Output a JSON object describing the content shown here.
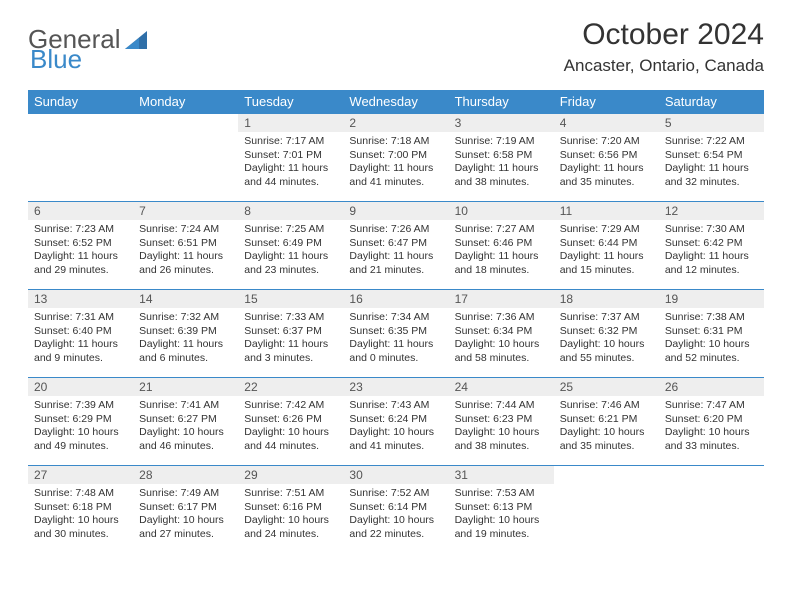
{
  "logo": {
    "text1": "General",
    "text2": "Blue"
  },
  "title": "October 2024",
  "location": "Ancaster, Ontario, Canada",
  "colors": {
    "header_bg": "#3a89c9",
    "header_text": "#ffffff",
    "daynum_bg": "#eeeeee",
    "border": "#3a89c9",
    "text": "#333333"
  },
  "weekdays": [
    "Sunday",
    "Monday",
    "Tuesday",
    "Wednesday",
    "Thursday",
    "Friday",
    "Saturday"
  ],
  "weeks": [
    [
      null,
      null,
      {
        "n": "1",
        "sr": "7:17 AM",
        "ss": "7:01 PM",
        "dl": "11 hours and 44 minutes."
      },
      {
        "n": "2",
        "sr": "7:18 AM",
        "ss": "7:00 PM",
        "dl": "11 hours and 41 minutes."
      },
      {
        "n": "3",
        "sr": "7:19 AM",
        "ss": "6:58 PM",
        "dl": "11 hours and 38 minutes."
      },
      {
        "n": "4",
        "sr": "7:20 AM",
        "ss": "6:56 PM",
        "dl": "11 hours and 35 minutes."
      },
      {
        "n": "5",
        "sr": "7:22 AM",
        "ss": "6:54 PM",
        "dl": "11 hours and 32 minutes."
      }
    ],
    [
      {
        "n": "6",
        "sr": "7:23 AM",
        "ss": "6:52 PM",
        "dl": "11 hours and 29 minutes."
      },
      {
        "n": "7",
        "sr": "7:24 AM",
        "ss": "6:51 PM",
        "dl": "11 hours and 26 minutes."
      },
      {
        "n": "8",
        "sr": "7:25 AM",
        "ss": "6:49 PM",
        "dl": "11 hours and 23 minutes."
      },
      {
        "n": "9",
        "sr": "7:26 AM",
        "ss": "6:47 PM",
        "dl": "11 hours and 21 minutes."
      },
      {
        "n": "10",
        "sr": "7:27 AM",
        "ss": "6:46 PM",
        "dl": "11 hours and 18 minutes."
      },
      {
        "n": "11",
        "sr": "7:29 AM",
        "ss": "6:44 PM",
        "dl": "11 hours and 15 minutes."
      },
      {
        "n": "12",
        "sr": "7:30 AM",
        "ss": "6:42 PM",
        "dl": "11 hours and 12 minutes."
      }
    ],
    [
      {
        "n": "13",
        "sr": "7:31 AM",
        "ss": "6:40 PM",
        "dl": "11 hours and 9 minutes."
      },
      {
        "n": "14",
        "sr": "7:32 AM",
        "ss": "6:39 PM",
        "dl": "11 hours and 6 minutes."
      },
      {
        "n": "15",
        "sr": "7:33 AM",
        "ss": "6:37 PM",
        "dl": "11 hours and 3 minutes."
      },
      {
        "n": "16",
        "sr": "7:34 AM",
        "ss": "6:35 PM",
        "dl": "11 hours and 0 minutes."
      },
      {
        "n": "17",
        "sr": "7:36 AM",
        "ss": "6:34 PM",
        "dl": "10 hours and 58 minutes."
      },
      {
        "n": "18",
        "sr": "7:37 AM",
        "ss": "6:32 PM",
        "dl": "10 hours and 55 minutes."
      },
      {
        "n": "19",
        "sr": "7:38 AM",
        "ss": "6:31 PM",
        "dl": "10 hours and 52 minutes."
      }
    ],
    [
      {
        "n": "20",
        "sr": "7:39 AM",
        "ss": "6:29 PM",
        "dl": "10 hours and 49 minutes."
      },
      {
        "n": "21",
        "sr": "7:41 AM",
        "ss": "6:27 PM",
        "dl": "10 hours and 46 minutes."
      },
      {
        "n": "22",
        "sr": "7:42 AM",
        "ss": "6:26 PM",
        "dl": "10 hours and 44 minutes."
      },
      {
        "n": "23",
        "sr": "7:43 AM",
        "ss": "6:24 PM",
        "dl": "10 hours and 41 minutes."
      },
      {
        "n": "24",
        "sr": "7:44 AM",
        "ss": "6:23 PM",
        "dl": "10 hours and 38 minutes."
      },
      {
        "n": "25",
        "sr": "7:46 AM",
        "ss": "6:21 PM",
        "dl": "10 hours and 35 minutes."
      },
      {
        "n": "26",
        "sr": "7:47 AM",
        "ss": "6:20 PM",
        "dl": "10 hours and 33 minutes."
      }
    ],
    [
      {
        "n": "27",
        "sr": "7:48 AM",
        "ss": "6:18 PM",
        "dl": "10 hours and 30 minutes."
      },
      {
        "n": "28",
        "sr": "7:49 AM",
        "ss": "6:17 PM",
        "dl": "10 hours and 27 minutes."
      },
      {
        "n": "29",
        "sr": "7:51 AM",
        "ss": "6:16 PM",
        "dl": "10 hours and 24 minutes."
      },
      {
        "n": "30",
        "sr": "7:52 AM",
        "ss": "6:14 PM",
        "dl": "10 hours and 22 minutes."
      },
      {
        "n": "31",
        "sr": "7:53 AM",
        "ss": "6:13 PM",
        "dl": "10 hours and 19 minutes."
      },
      null,
      null
    ]
  ],
  "labels": {
    "sunrise": "Sunrise: ",
    "sunset": "Sunset: ",
    "daylight": "Daylight: "
  }
}
